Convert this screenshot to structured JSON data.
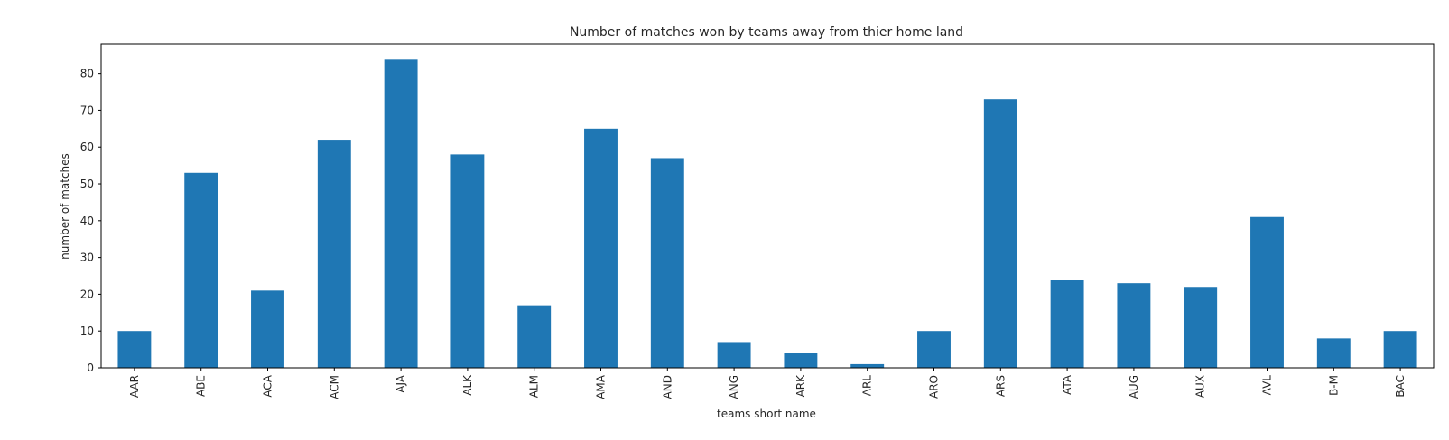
{
  "chart_data": {
    "type": "bar",
    "title": "Number of matches won by teams away from thier home land",
    "xlabel": "teams short name",
    "ylabel": "number of matches",
    "categories": [
      "AAR",
      "ABE",
      "ACA",
      "ACM",
      "AJA",
      "ALK",
      "ALM",
      "AMA",
      "AND",
      "ANG",
      "ARK",
      "ARL",
      "ARO",
      "ARS",
      "ATA",
      "AUG",
      "AUX",
      "AVL",
      "B-M",
      "BAC"
    ],
    "values": [
      10,
      53,
      21,
      62,
      84,
      58,
      17,
      65,
      57,
      7,
      4,
      1,
      10,
      73,
      24,
      23,
      22,
      41,
      8,
      10
    ],
    "ylim": [
      0,
      88
    ],
    "yticks": [
      0,
      10,
      20,
      30,
      40,
      50,
      60,
      70,
      80
    ],
    "grid": false,
    "bar_color": "#1f77b4"
  }
}
